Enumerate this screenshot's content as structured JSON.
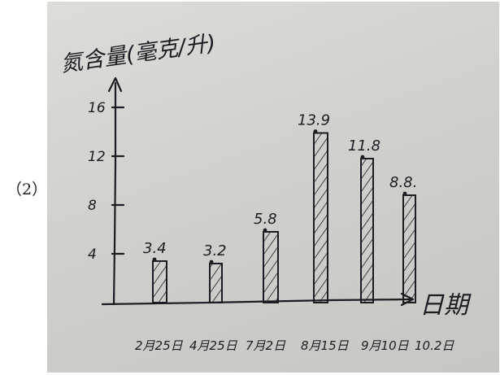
{
  "part_label": "（2）",
  "chart_data": {
    "type": "bar",
    "ylabel": "氮含量(毫克/升)",
    "xlabel": "日期",
    "yticks": [
      "4",
      "8",
      "12",
      "16"
    ],
    "ylim": [
      0,
      16
    ],
    "grid": false,
    "categories": [
      "2月25日",
      "4月25日",
      "7月2日",
      "8月15日",
      "9月10日",
      "10.2日"
    ],
    "values": [
      3.4,
      3.2,
      5.8,
      13.9,
      11.8,
      8.8
    ],
    "value_labels": [
      "3.4",
      "3.2",
      "5.8",
      "13.9",
      "11.8",
      "8.8."
    ]
  },
  "colors": {
    "ink": "#1c1c22",
    "paper": "#d3d3cf"
  }
}
